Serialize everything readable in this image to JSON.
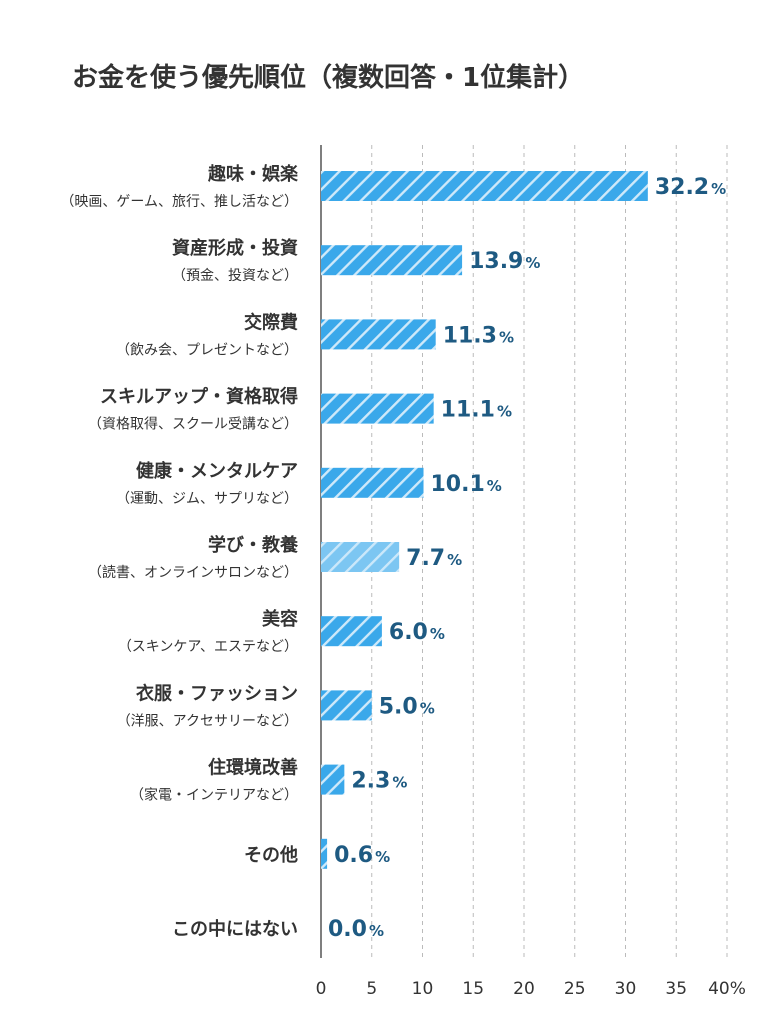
{
  "chart_data": {
    "type": "bar",
    "orientation": "horizontal",
    "title": "お金を使う優先順位（複数回答・1位集計）",
    "xlim": [
      0,
      40
    ],
    "xticks": [
      0,
      5,
      10,
      15,
      20,
      25,
      30,
      35,
      40
    ],
    "xtick_labels": [
      "0",
      "5",
      "10",
      "15",
      "20",
      "25",
      "30",
      "35",
      "40%"
    ],
    "grid": true,
    "grid_style": "dashed vertical",
    "value_suffix": "%",
    "categories": [
      {
        "label": "趣味・娯楽",
        "sublabel": "（映画、ゲーム、旅行、推し活など）",
        "value": 32.2,
        "value_text": "32.2"
      },
      {
        "label": "資産形成・投資",
        "sublabel": "（預金、投資など）",
        "value": 13.9,
        "value_text": "13.9"
      },
      {
        "label": "交際費",
        "sublabel": "（飲み会、プレゼントなど）",
        "value": 11.3,
        "value_text": "11.3"
      },
      {
        "label": "スキルアップ・資格取得",
        "sublabel": "（資格取得、スクール受講など）",
        "value": 11.1,
        "value_text": "11.1"
      },
      {
        "label": "健康・メンタルケア",
        "sublabel": "（運動、ジム、サプリなど）",
        "value": 10.1,
        "value_text": "10.1"
      },
      {
        "label": "学び・教養",
        "sublabel": "（読書、オンラインサロンなど）",
        "value": 7.7,
        "value_text": "7.7"
      },
      {
        "label": "美容",
        "sublabel": "（スキンケア、エステなど）",
        "value": 6.0,
        "value_text": "6.0"
      },
      {
        "label": "衣服・ファッション",
        "sublabel": "（洋服、アクセサリーなど）",
        "value": 5.0,
        "value_text": "5.0"
      },
      {
        "label": "住環境改善",
        "sublabel": "（家電・インテリアなど）",
        "value": 2.3,
        "value_text": "2.3"
      },
      {
        "label": "その他",
        "sublabel": "",
        "value": 0.6,
        "value_text": "0.6"
      },
      {
        "label": "この中にはない",
        "sublabel": "",
        "value": 0.0,
        "value_text": "0.0"
      }
    ],
    "colors": {
      "bar": "#3aa8ea",
      "bar_light": "#7cc6f2",
      "hatch": "#ffffff",
      "value_text": "#1e5a82",
      "grid": "#bbbbbb",
      "axis": "#555555",
      "title": "#333333"
    }
  }
}
